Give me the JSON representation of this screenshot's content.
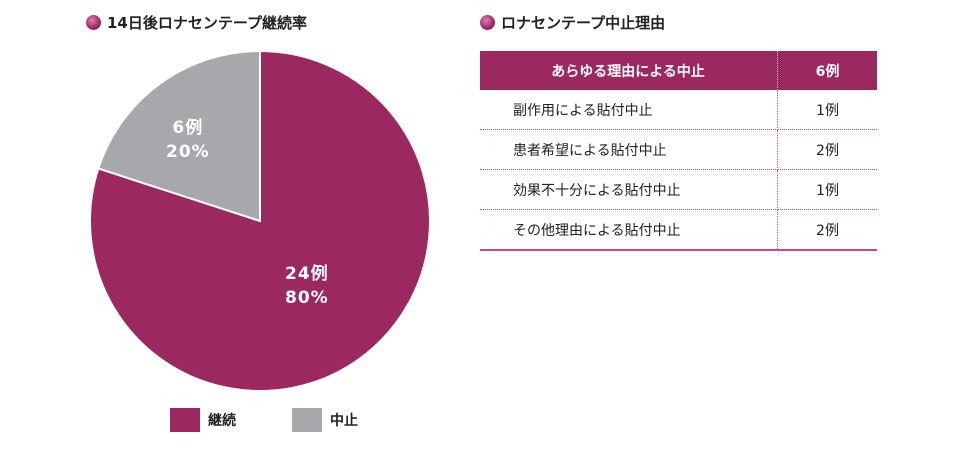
{
  "chart_data": {
    "type": "pie",
    "title": "14日後ロナセンテープ継続率",
    "slices": [
      {
        "name": "継続",
        "count_label": "24例",
        "percent_label": "80%",
        "value": 80,
        "color": "#9c2860"
      },
      {
        "name": "中止",
        "count_label": "6例",
        "percent_label": "20%",
        "value": 20,
        "color": "#a7a8ab"
      }
    ],
    "legend_position": "bottom"
  },
  "table": {
    "title": "ロナセンテープ中止理由",
    "header": {
      "reason": "あらゆる理由による中止",
      "count": "6例"
    },
    "rows": [
      {
        "reason": "副作用による貼付中止",
        "count": "1例"
      },
      {
        "reason": "患者希望による貼付中止",
        "count": "2例"
      },
      {
        "reason": "効果不十分による貼付中止",
        "count": "1例"
      },
      {
        "reason": "その他理由による貼付中止",
        "count": "2例"
      }
    ]
  }
}
